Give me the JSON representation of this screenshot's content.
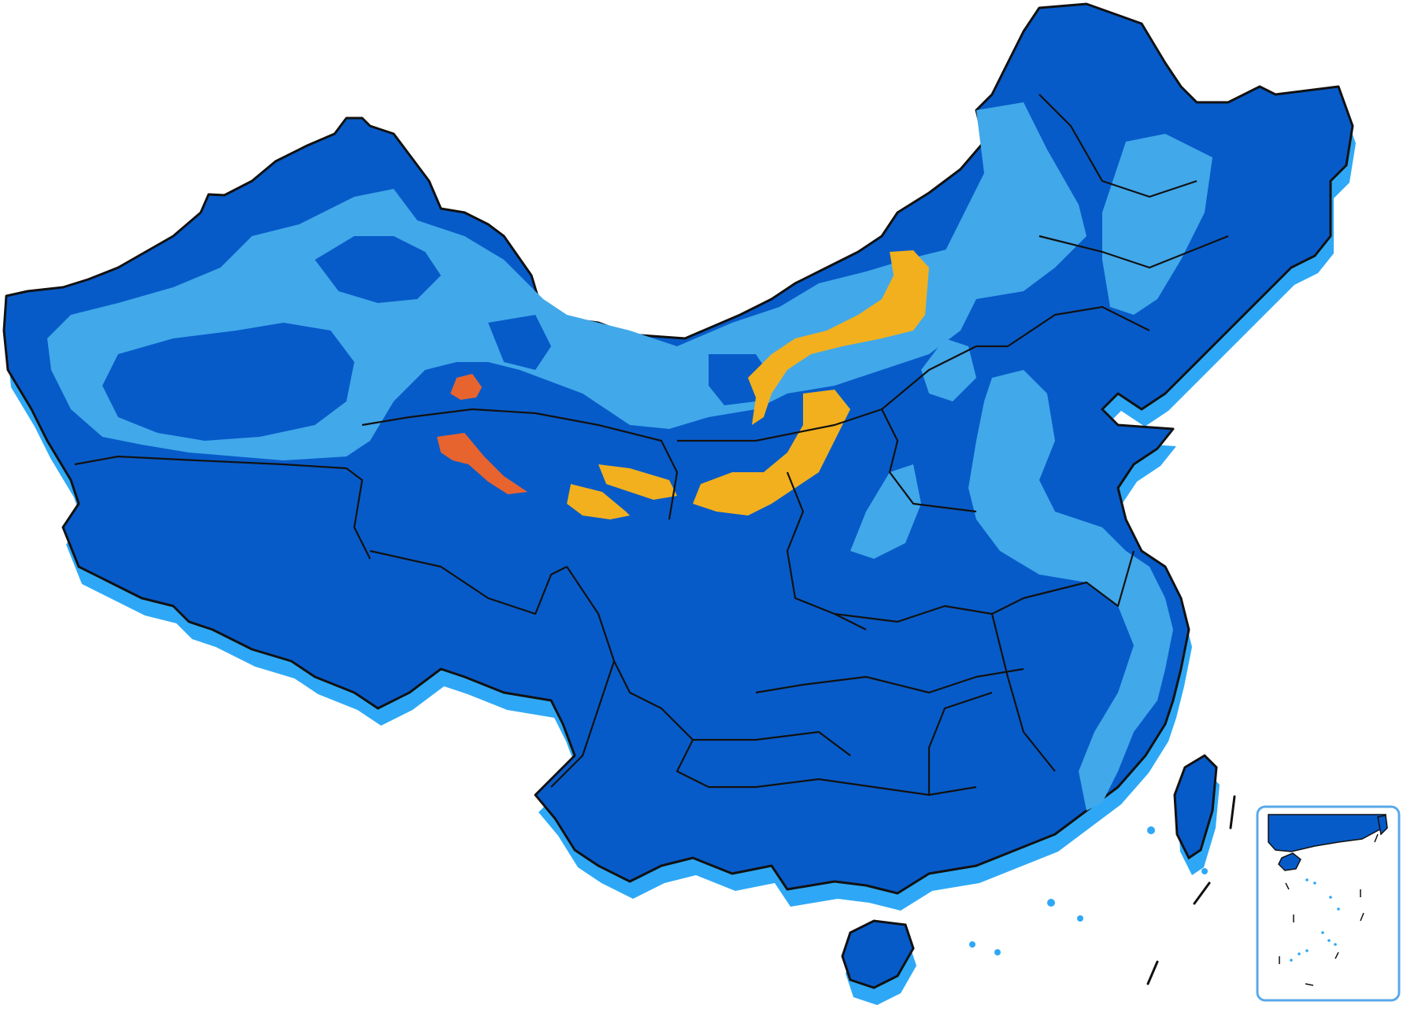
{
  "map": {
    "colors": {
      "background": "#ffffff",
      "shadow": "#2ea8f6",
      "land": "#075bc8",
      "light_zone": "#41a8ea",
      "orange_zone": "#f2b01e",
      "red_zone": "#e8642e",
      "border": "#111111",
      "inset_border": "#5aa9ea"
    },
    "legend": [],
    "layers": {
      "land": "land",
      "light_zones": "light_zone",
      "orange_zones": "orange_zone",
      "red_zones": "red_zone"
    },
    "inset": {
      "visible": true
    }
  }
}
